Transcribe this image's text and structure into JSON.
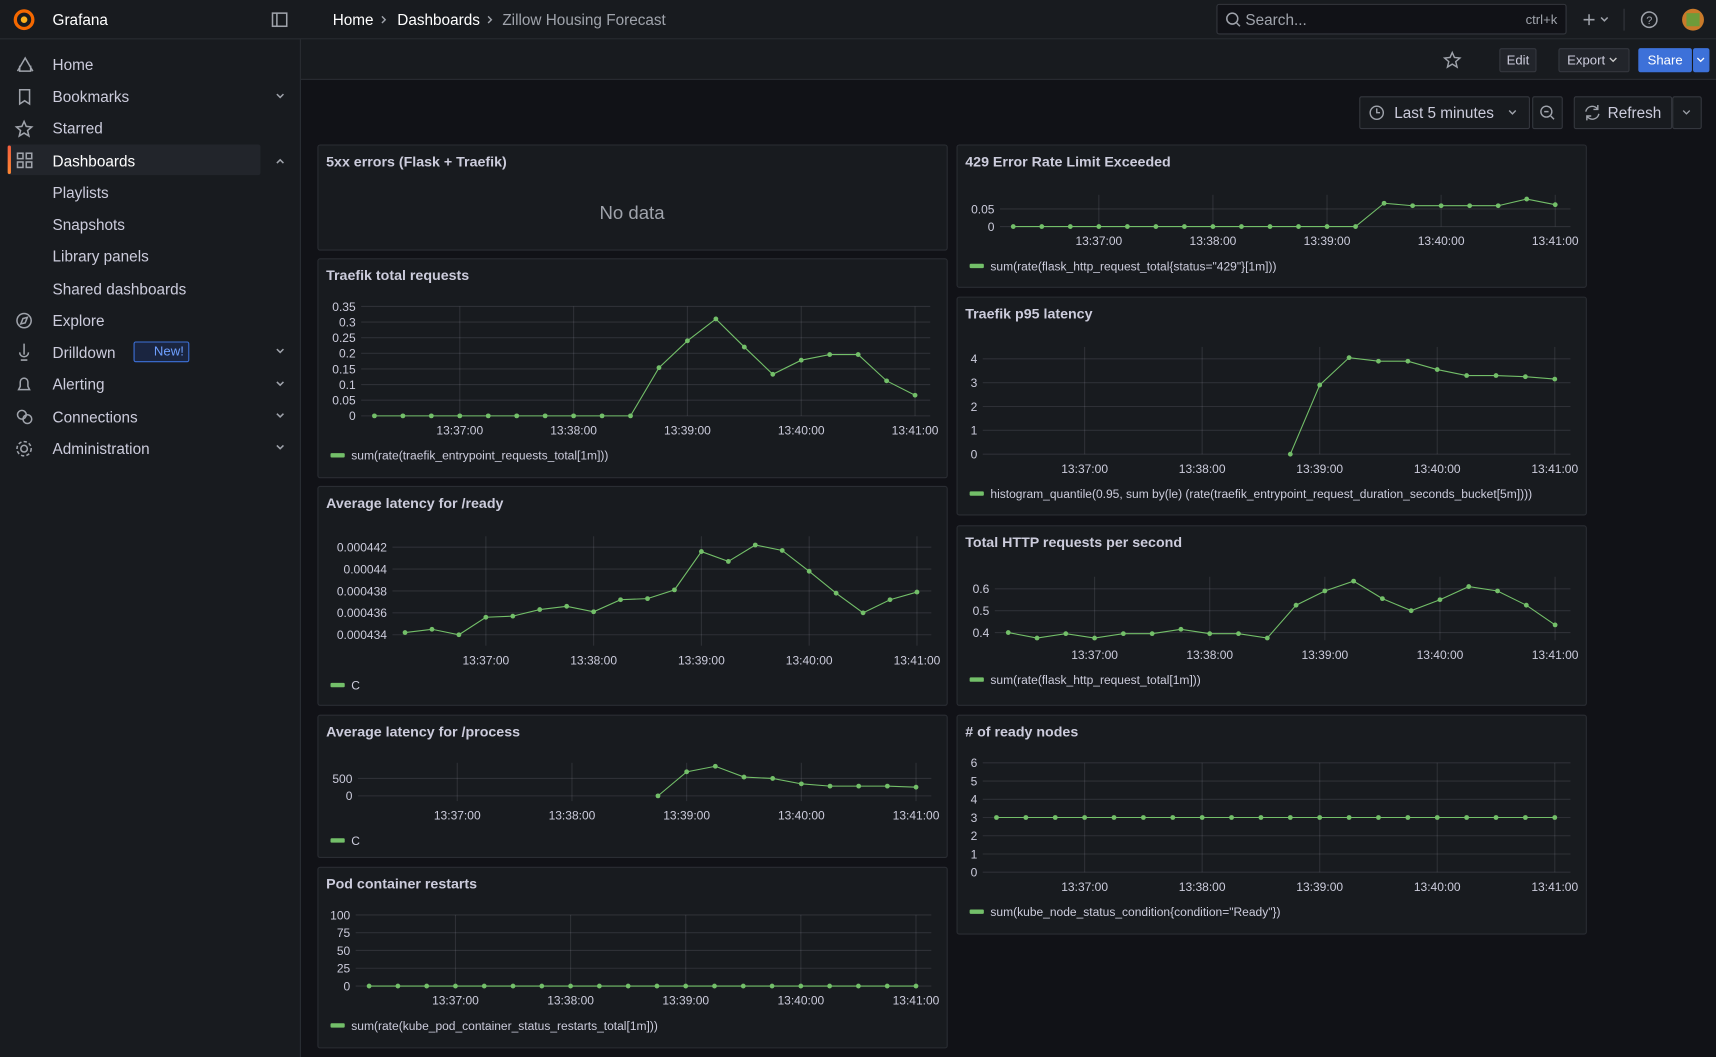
{
  "header": {
    "app_name": "Grafana",
    "breadcrumbs": [
      "Home",
      "Dashboards",
      "Zillow Housing Forecast"
    ],
    "search_placeholder": "Search...",
    "search_shortcut": "ctrl+k"
  },
  "toolbar": {
    "edit": "Edit",
    "export": "Export",
    "share": "Share",
    "time_range": "Last 5 minutes",
    "refresh": "Refresh"
  },
  "sidebar": {
    "items": [
      "Home",
      "Bookmarks",
      "Starred",
      "Dashboards"
    ],
    "dashboard_items": [
      "Playlists",
      "Snapshots",
      "Library panels",
      "Shared dashboards"
    ],
    "more_items": [
      "Explore",
      "Drilldown",
      "Alerting",
      "Connections",
      "Administration"
    ],
    "drilldown_badge": "New!"
  },
  "chart_data": [
    {
      "type": "line",
      "title": "5xx errors (Flask + Traefik)",
      "message": "No data"
    },
    {
      "type": "line",
      "title": "429 Error Rate Limit Exceeded",
      "x": [
        "13:36:15",
        "13:36:30",
        "13:36:45",
        "13:37:00",
        "13:37:15",
        "13:37:30",
        "13:37:45",
        "13:38:00",
        "13:38:15",
        "13:38:30",
        "13:38:45",
        "13:39:00",
        "13:39:15",
        "13:39:30",
        "13:39:45",
        "13:40:00",
        "13:40:15",
        "13:40:30",
        "13:40:45",
        "13:41:00"
      ],
      "series": [
        {
          "name": "sum(rate(flask_http_request_total{status=\"429\"}[1m]))",
          "color": "#73bf69",
          "values": [
            0,
            0,
            0,
            0,
            0,
            0,
            0,
            0,
            0,
            0,
            0,
            0,
            0,
            0.066,
            0.059,
            0.059,
            0.059,
            0.059,
            0.078,
            0.062
          ]
        }
      ],
      "xlim": [
        "13:36:08",
        "13:41:08"
      ],
      "xticks": [
        "13:37:00",
        "13:38:00",
        "13:39:00",
        "13:40:00",
        "13:41:00"
      ],
      "ylim": [
        0,
        0.09
      ],
      "yticks": [
        0,
        0.05
      ],
      "grid": true
    },
    {
      "type": "line",
      "title": "Traefik total requests",
      "x": [
        "13:36:15",
        "13:36:30",
        "13:36:45",
        "13:37:00",
        "13:37:15",
        "13:37:30",
        "13:37:45",
        "13:38:00",
        "13:38:15",
        "13:38:30",
        "13:38:45",
        "13:39:00",
        "13:39:15",
        "13:39:30",
        "13:39:45",
        "13:40:00",
        "13:40:15",
        "13:40:30",
        "13:40:45",
        "13:41:00"
      ],
      "series": [
        {
          "name": "sum(rate(traefik_entrypoint_requests_total[1m]))",
          "color": "#73bf69",
          "values": [
            0,
            0,
            0,
            0,
            0,
            0,
            0,
            0,
            0,
            0,
            0.154,
            0.24,
            0.31,
            0.22,
            0.133,
            0.178,
            0.196,
            0.196,
            0.112,
            0.066
          ]
        }
      ],
      "xlim": [
        "13:36:08",
        "13:41:08"
      ],
      "xticks": [
        "13:37:00",
        "13:38:00",
        "13:39:00",
        "13:40:00",
        "13:41:00"
      ],
      "ylim": [
        0,
        0.35
      ],
      "yticks": [
        0,
        0.05,
        0.1,
        0.15,
        0.2,
        0.25,
        0.3,
        0.35
      ],
      "grid": true
    },
    {
      "type": "line",
      "title": "Traefik p95 latency",
      "x": [
        "13:38:45",
        "13:39:00",
        "13:39:15",
        "13:39:30",
        "13:39:45",
        "13:40:00",
        "13:40:15",
        "13:40:30",
        "13:40:45",
        "13:41:00"
      ],
      "series": [
        {
          "name": "histogram_quantile(0.95, sum by(le) (rate(traefik_entrypoint_request_duration_seconds_bucket[5m])))",
          "color": "#73bf69",
          "values": [
            0,
            2.9,
            4.05,
            3.9,
            3.9,
            3.55,
            3.3,
            3.3,
            3.25,
            3.15
          ]
        }
      ],
      "xlim": [
        "13:36:08",
        "13:41:08"
      ],
      "xticks": [
        "13:37:00",
        "13:38:00",
        "13:39:00",
        "13:40:00",
        "13:41:00"
      ],
      "ylim": [
        0,
        4.5
      ],
      "yticks": [
        0,
        1,
        2,
        3,
        4
      ],
      "grid": true
    },
    {
      "type": "line",
      "title": "Average latency for /ready",
      "x": [
        "13:36:15",
        "13:36:30",
        "13:36:45",
        "13:37:00",
        "13:37:15",
        "13:37:30",
        "13:37:45",
        "13:38:00",
        "13:38:15",
        "13:38:30",
        "13:38:45",
        "13:39:00",
        "13:39:15",
        "13:39:30",
        "13:39:45",
        "13:40:00",
        "13:40:15",
        "13:40:30",
        "13:40:45",
        "13:41:00"
      ],
      "series": [
        {
          "name": "C",
          "color": "#73bf69",
          "values": [
            0.0004342,
            0.0004345,
            0.000434,
            0.0004356,
            0.0004357,
            0.0004363,
            0.0004366,
            0.0004361,
            0.0004372,
            0.0004373,
            0.0004381,
            0.0004416,
            0.0004407,
            0.0004422,
            0.0004417,
            0.0004398,
            0.0004378,
            0.000436,
            0.0004372,
            0.0004379
          ]
        }
      ],
      "xlim": [
        "13:36:08",
        "13:41:08"
      ],
      "xticks": [
        "13:37:00",
        "13:38:00",
        "13:39:00",
        "13:40:00",
        "13:41:00"
      ],
      "ylim": [
        0.000433,
        0.000443
      ],
      "yticks": [
        0.000434,
        0.000436,
        0.000438,
        0.00044,
        0.000442
      ],
      "grid": true
    },
    {
      "type": "line",
      "title": "Total HTTP requests per second",
      "x": [
        "13:36:15",
        "13:36:30",
        "13:36:45",
        "13:37:00",
        "13:37:15",
        "13:37:30",
        "13:37:45",
        "13:38:00",
        "13:38:15",
        "13:38:30",
        "13:38:45",
        "13:39:00",
        "13:39:15",
        "13:39:30",
        "13:39:45",
        "13:40:00",
        "13:40:15",
        "13:40:30",
        "13:40:45",
        "13:41:00"
      ],
      "series": [
        {
          "name": "sum(rate(flask_http_request_total[1m]))",
          "color": "#73bf69",
          "values": [
            0.4,
            0.375,
            0.395,
            0.375,
            0.395,
            0.395,
            0.415,
            0.395,
            0.395,
            0.375,
            0.525,
            0.59,
            0.635,
            0.555,
            0.5,
            0.55,
            0.61,
            0.59,
            0.525,
            0.435
          ]
        }
      ],
      "xlim": [
        "13:36:08",
        "13:41:08"
      ],
      "xticks": [
        "13:37:00",
        "13:38:00",
        "13:39:00",
        "13:40:00",
        "13:41:00"
      ],
      "ylim": [
        0.365,
        0.655
      ],
      "yticks": [
        0.4,
        0.5,
        0.6
      ],
      "grid": true
    },
    {
      "type": "line",
      "title": "Average latency for /process",
      "x": [
        "13:38:45",
        "13:39:00",
        "13:39:15",
        "13:39:30",
        "13:39:45",
        "13:40:00",
        "13:40:15",
        "13:40:30",
        "13:40:45",
        "13:41:00"
      ],
      "series": [
        {
          "name": "C",
          "color": "#73bf69",
          "values": [
            0,
            690,
            850,
            540,
            500,
            345,
            280,
            280,
            280,
            250
          ]
        }
      ],
      "xlim": [
        "13:36:08",
        "13:41:08"
      ],
      "xticks": [
        "13:37:00",
        "13:38:00",
        "13:39:00",
        "13:40:00",
        "13:41:00"
      ],
      "ylim": [
        -150,
        950
      ],
      "yticks": [
        0,
        500
      ],
      "grid": true
    },
    {
      "type": "line",
      "title": "# of ready nodes",
      "x": [
        "13:36:15",
        "13:36:30",
        "13:36:45",
        "13:37:00",
        "13:37:15",
        "13:37:30",
        "13:37:45",
        "13:38:00",
        "13:38:15",
        "13:38:30",
        "13:38:45",
        "13:39:00",
        "13:39:15",
        "13:39:30",
        "13:39:45",
        "13:40:00",
        "13:40:15",
        "13:40:30",
        "13:40:45",
        "13:41:00"
      ],
      "series": [
        {
          "name": "sum(kube_node_status_condition{condition=\"Ready\"})",
          "color": "#73bf69",
          "values": [
            3,
            3,
            3,
            3,
            3,
            3,
            3,
            3,
            3,
            3,
            3,
            3,
            3,
            3,
            3,
            3,
            3,
            3,
            3,
            3
          ]
        }
      ],
      "xlim": [
        "13:36:08",
        "13:41:08"
      ],
      "xticks": [
        "13:37:00",
        "13:38:00",
        "13:39:00",
        "13:40:00",
        "13:41:00"
      ],
      "ylim": [
        0,
        6
      ],
      "yticks": [
        0,
        1,
        2,
        3,
        4,
        5,
        6
      ],
      "grid": true
    },
    {
      "type": "line",
      "title": "Pod container restarts",
      "x": [
        "13:36:15",
        "13:36:30",
        "13:36:45",
        "13:37:00",
        "13:37:15",
        "13:37:30",
        "13:37:45",
        "13:38:00",
        "13:38:15",
        "13:38:30",
        "13:38:45",
        "13:39:00",
        "13:39:15",
        "13:39:30",
        "13:39:45",
        "13:40:00",
        "13:40:15",
        "13:40:30",
        "13:40:45",
        "13:41:00"
      ],
      "series": [
        {
          "name": "sum(rate(kube_pod_container_status_restarts_total[1m]))",
          "color": "#73bf69",
          "values": [
            0,
            0,
            0,
            0,
            0,
            0,
            0,
            0,
            0,
            0,
            0,
            0,
            0,
            0,
            0,
            0,
            0,
            0,
            0,
            0
          ]
        }
      ],
      "xlim": [
        "13:36:08",
        "13:41:08"
      ],
      "xticks": [
        "13:37:00",
        "13:38:00",
        "13:39:00",
        "13:40:00",
        "13:41:00"
      ],
      "ylim": [
        0,
        100
      ],
      "yticks": [
        0,
        25,
        50,
        75,
        100
      ],
      "grid": true
    }
  ]
}
